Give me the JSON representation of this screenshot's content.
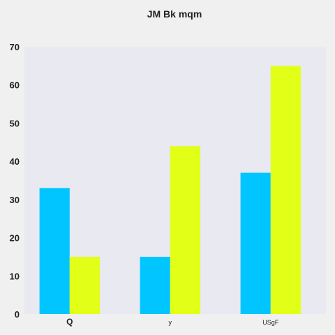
{
  "chart_data": {
    "type": "bar",
    "title": "JM Bk mqm",
    "xlabel": "",
    "ylabel": "",
    "categories": [
      "Q",
      "y",
      "USgF"
    ],
    "series": [
      {
        "values": [
          33,
          15,
          37
        ],
        "color": "#00c5ff"
      },
      {
        "values": [
          15,
          44,
          65
        ],
        "color": "#e2ff17"
      }
    ],
    "ylim": [
      0,
      70
    ],
    "yticks": [
      0,
      10,
      20,
      30,
      40,
      50,
      60,
      70
    ],
    "grid": false,
    "legend": "none",
    "plot_background": "#e8e9f1",
    "page_background": "#f0f0f0"
  }
}
